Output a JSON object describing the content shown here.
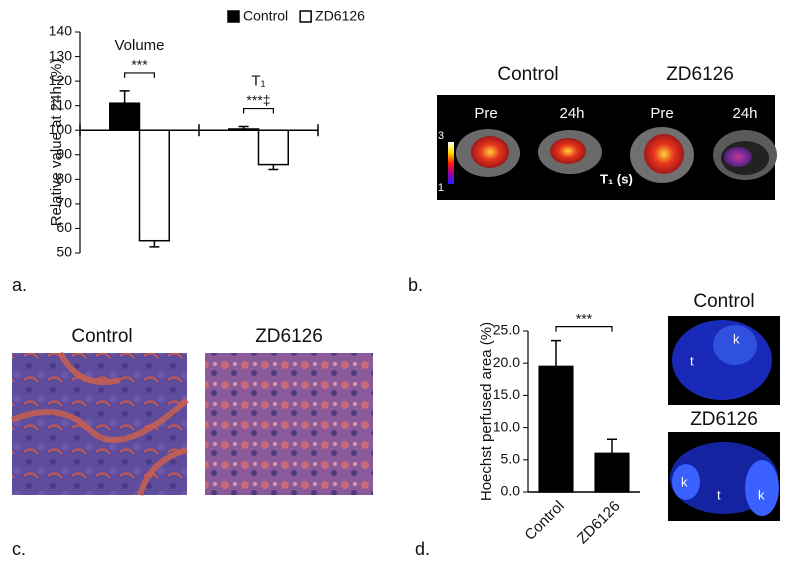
{
  "chart_data": [
    {
      "type": "bar",
      "ylabel": "Relative value at 24h (%)",
      "categories": [
        "Volume",
        "T₁"
      ],
      "series": [
        {
          "name": "Control",
          "color": "#000000",
          "values": [
            111,
            100.5
          ],
          "errors": [
            5,
            1
          ]
        },
        {
          "name": "ZD6126",
          "color": "#ffffff",
          "values": [
            55,
            86
          ],
          "errors": [
            2.5,
            2
          ]
        }
      ],
      "baseline": 100,
      "ylim": [
        50,
        140
      ],
      "yticks": [
        50,
        60,
        70,
        80,
        90,
        100,
        110,
        120,
        130,
        140
      ],
      "annotations": [
        "***",
        "***‡"
      ],
      "legend": "top"
    },
    {
      "type": "bar",
      "ylabel": "Hoechst perfused area (%)",
      "categories": [
        "Control",
        "ZD6126"
      ],
      "values": [
        19.5,
        6
      ],
      "errors": [
        4,
        2.2
      ],
      "color": "#000000",
      "ylim": [
        0,
        25
      ],
      "yticks": [
        {
          "value": 0,
          "label": "0.0"
        },
        {
          "value": 5,
          "label": "5.0"
        },
        {
          "value": 10,
          "label": "10.0"
        },
        {
          "value": 15,
          "label": "15.0"
        },
        {
          "value": 20,
          "label": "20.0"
        },
        {
          "value": 25,
          "label": "25.0"
        }
      ],
      "annotations": [
        "***"
      ]
    }
  ],
  "panel_labels": [
    "a.",
    "b.",
    "c.",
    "d."
  ],
  "mri": {
    "groups": [
      "Control",
      "ZD6126"
    ],
    "timepoints": [
      "Pre",
      "24h",
      "Pre",
      "24h"
    ],
    "colorbar": [
      "3",
      "1"
    ],
    "unit": "T₁ (s)"
  },
  "histology": {
    "labels": [
      "Control",
      "ZD6126"
    ]
  },
  "hoechst": {
    "labels": [
      "Control",
      "ZD6126"
    ],
    "regions": [
      [
        "t",
        "k"
      ],
      [
        "k",
        "t",
        "k"
      ]
    ]
  }
}
